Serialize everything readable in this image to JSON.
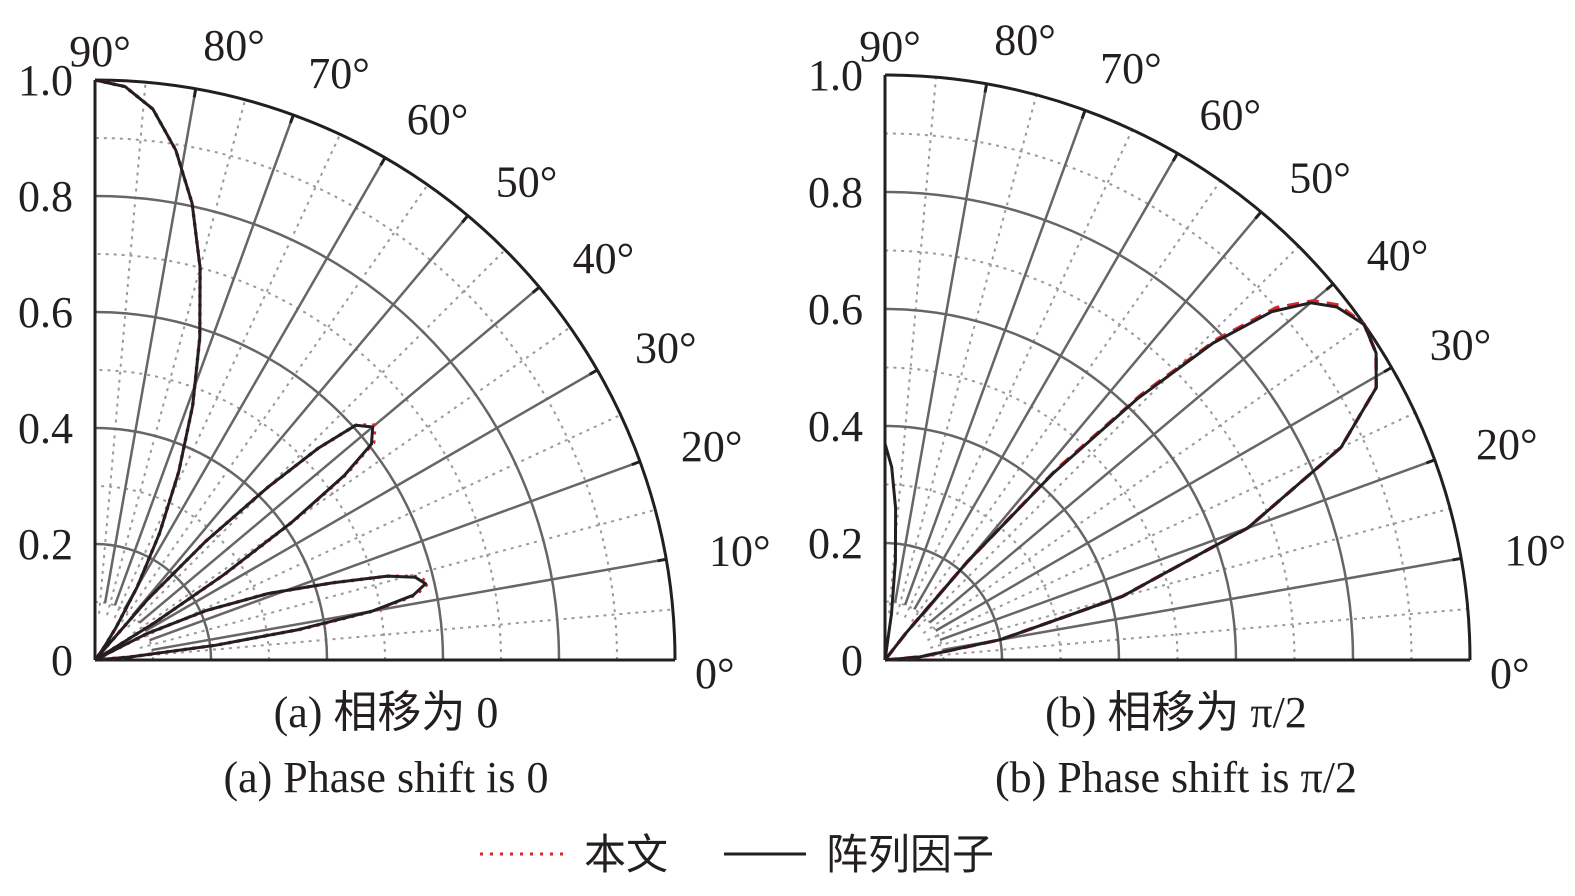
{
  "chart_data": [
    {
      "type": "polar-line",
      "caption_cn": "(a) 相移为 0",
      "caption_en": "(a) Phase shift is 0",
      "phase_shift": "0",
      "angle_range_deg": [
        0,
        90
      ],
      "radius_range": [
        0,
        1.0
      ],
      "radial_ticks": [
        "0",
        "0.2",
        "0.4",
        "0.6",
        "0.8",
        "1.0"
      ],
      "radial_tick_values": [
        0,
        0.2,
        0.4,
        0.6,
        0.8,
        1.0
      ],
      "angle_ticks": [
        "0°",
        "10°",
        "20°",
        "30°",
        "40°",
        "50°",
        "60°",
        "70°",
        "80°",
        "90°"
      ],
      "angle_tick_values": [
        0,
        10,
        20,
        30,
        40,
        50,
        60,
        70,
        80,
        90
      ],
      "grid": true,
      "series": [
        {
          "name": "本文",
          "style": "dotted",
          "color": "#d7262e",
          "lobes": [
            [
              [
                90,
                1.0
              ],
              [
                87,
                0.99
              ],
              [
                84,
                0.955
              ],
              [
                81,
                0.89
              ],
              [
                78,
                0.805
              ],
              [
                75,
                0.7
              ],
              [
                72,
                0.585
              ],
              [
                69,
                0.47
              ],
              [
                66,
                0.355
              ],
              [
                63,
                0.245
              ],
              [
                60,
                0.145
              ],
              [
                57,
                0.065
              ],
              [
                55,
                0.03
              ],
              [
                53,
                0.01
              ],
              [
                52,
                0.0
              ]
            ],
            [
              [
                52,
                0.0
              ],
              [
                49,
                0.14
              ],
              [
                47,
                0.28
              ],
              [
                45,
                0.42
              ],
              [
                43.5,
                0.53
              ],
              [
                42,
                0.605
              ],
              [
                40,
                0.63
              ],
              [
                38,
                0.61
              ],
              [
                36.5,
                0.54
              ],
              [
                35,
                0.42
              ],
              [
                33.5,
                0.27
              ],
              [
                32,
                0.12
              ],
              [
                31,
                0.0
              ]
            ],
            [
              [
                31,
                0.0
              ],
              [
                27,
                0.1
              ],
              [
                24,
                0.21
              ],
              [
                21,
                0.32
              ],
              [
                18,
                0.43
              ],
              [
                16,
                0.525
              ],
              [
                14.5,
                0.575
              ],
              [
                13,
                0.59
              ],
              [
                11.5,
                0.565
              ],
              [
                10,
                0.49
              ],
              [
                8.5,
                0.36
              ],
              [
                7,
                0.21
              ],
              [
                5,
                0.06
              ],
              [
                4,
                0.0
              ]
            ]
          ]
        },
        {
          "name": "阵列因子",
          "style": "solid",
          "color": "#231f20",
          "lobes": [
            [
              [
                90,
                1.0
              ],
              [
                87,
                0.99
              ],
              [
                84,
                0.955
              ],
              [
                81,
                0.89
              ],
              [
                78,
                0.805
              ],
              [
                75,
                0.7
              ],
              [
                72,
                0.585
              ],
              [
                69,
                0.47
              ],
              [
                66,
                0.355
              ],
              [
                63,
                0.245
              ],
              [
                60,
                0.145
              ],
              [
                57,
                0.065
              ],
              [
                55,
                0.03
              ],
              [
                53,
                0.01
              ],
              [
                52,
                0.0
              ]
            ],
            [
              [
                52,
                0.0
              ],
              [
                49,
                0.14
              ],
              [
                47,
                0.28
              ],
              [
                45,
                0.42
              ],
              [
                43.5,
                0.53
              ],
              [
                42,
                0.605
              ],
              [
                40,
                0.625
              ],
              [
                38,
                0.605
              ],
              [
                36.5,
                0.535
              ],
              [
                35,
                0.415
              ],
              [
                33.5,
                0.265
              ],
              [
                32,
                0.12
              ],
              [
                31,
                0.0
              ]
            ],
            [
              [
                31,
                0.0
              ],
              [
                27,
                0.1
              ],
              [
                24,
                0.21
              ],
              [
                21,
                0.32
              ],
              [
                18,
                0.43
              ],
              [
                16,
                0.525
              ],
              [
                14.5,
                0.57
              ],
              [
                13,
                0.585
              ],
              [
                11.5,
                0.56
              ],
              [
                10,
                0.485
              ],
              [
                8.5,
                0.355
              ],
              [
                7,
                0.21
              ],
              [
                5,
                0.06
              ],
              [
                4,
                0.0
              ]
            ]
          ]
        }
      ]
    },
    {
      "type": "polar-line",
      "caption_cn": "(b) 相移为 π/2",
      "caption_en": "(b) Phase shift is π/2",
      "phase_shift": "π/2",
      "angle_range_deg": [
        0,
        90
      ],
      "radius_range": [
        0,
        1.0
      ],
      "radial_ticks": [
        "0",
        "0.2",
        "0.4",
        "0.6",
        "0.8",
        "1.0"
      ],
      "radial_tick_values": [
        0,
        0.2,
        0.4,
        0.6,
        0.8,
        1.0
      ],
      "angle_ticks": [
        "0°",
        "10°",
        "20°",
        "30°",
        "40°",
        "50°",
        "60°",
        "70°",
        "80°",
        "90°"
      ],
      "angle_tick_values": [
        0,
        10,
        20,
        30,
        40,
        50,
        60,
        70,
        80,
        90
      ],
      "grid": true,
      "series": [
        {
          "name": "本文",
          "style": "dashed",
          "color": "#d7262e",
          "lobes": [
            [
              [
                0,
                0.0
              ],
              [
                5,
                0.06
              ],
              [
                10,
                0.2
              ],
              [
                15,
                0.42
              ],
              [
                20,
                0.66
              ],
              [
                25,
                0.86
              ],
              [
                29,
                0.96
              ],
              [
                32,
                0.99
              ],
              [
                35,
                1.0
              ],
              [
                38,
                0.985
              ],
              [
                40,
                0.955
              ],
              [
                42,
                0.9
              ],
              [
                44,
                0.79
              ],
              [
                46,
                0.63
              ],
              [
                48,
                0.44
              ],
              [
                50,
                0.22
              ],
              [
                52,
                0.06
              ],
              [
                53,
                0.0
              ]
            ]
          ]
        },
        {
          "name": "阵列因子",
          "style": "solid",
          "color": "#231f20",
          "lobes": [
            [
              [
                0,
                0.0
              ],
              [
                5,
                0.06
              ],
              [
                10,
                0.2
              ],
              [
                15,
                0.42
              ],
              [
                20,
                0.66
              ],
              [
                25,
                0.86
              ],
              [
                29,
                0.96
              ],
              [
                32,
                0.99
              ],
              [
                35,
                1.0
              ],
              [
                38,
                0.98
              ],
              [
                40,
                0.95
              ],
              [
                42,
                0.89
              ],
              [
                44,
                0.78
              ],
              [
                46,
                0.62
              ],
              [
                48,
                0.43
              ],
              [
                50,
                0.22
              ],
              [
                52,
                0.06
              ],
              [
                53,
                0.0
              ]
            ],
            [
              [
                90,
                0.37
              ],
              [
                88,
                0.33
              ],
              [
                86,
                0.26
              ],
              [
                84,
                0.17
              ],
              [
                82,
                0.08
              ],
              [
                80,
                0.0
              ]
            ]
          ]
        }
      ]
    }
  ],
  "legend": {
    "items": [
      {
        "label": "本文",
        "style": "dotted",
        "color": "#d7262e"
      },
      {
        "label": "阵列因子",
        "style": "solid",
        "color": "#231f20"
      }
    ]
  }
}
